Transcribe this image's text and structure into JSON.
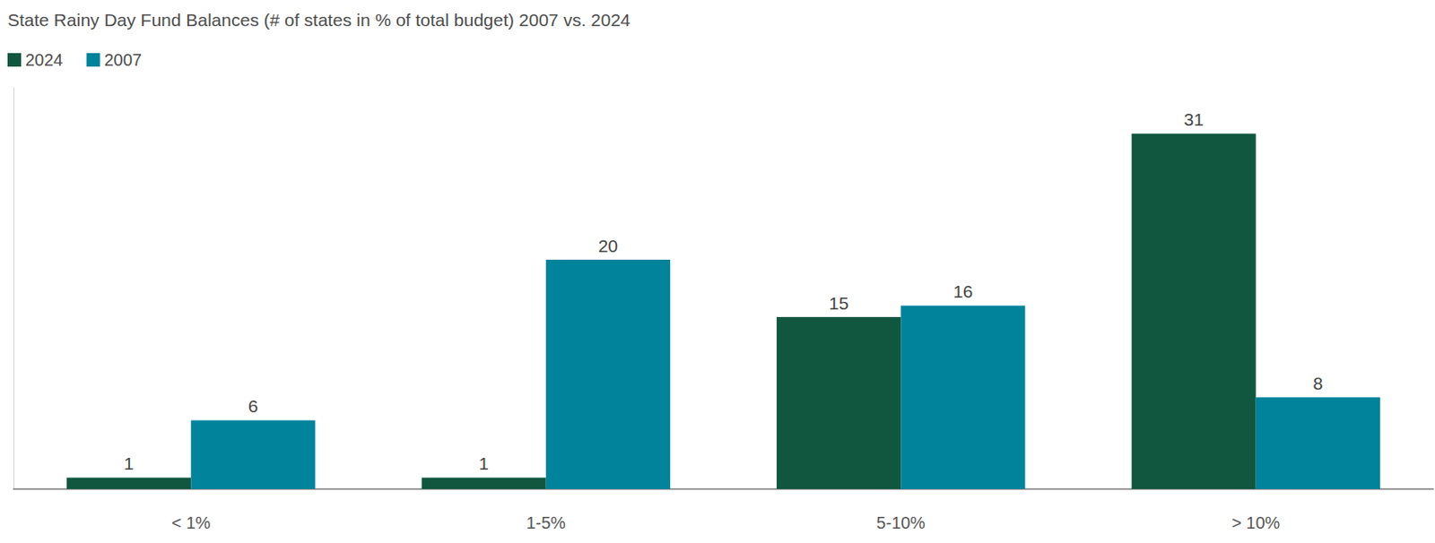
{
  "chart_data": {
    "type": "bar",
    "title": "State Rainy Day Fund Balances (# of states in % of total budget) 2007 vs. 2024",
    "categories": [
      "< 1%",
      "1-5%",
      "5-10%",
      "> 10%"
    ],
    "series": [
      {
        "name": "2024",
        "color": "#11573f",
        "values": [
          1,
          1,
          15,
          31
        ]
      },
      {
        "name": "2007",
        "color": "#00839b",
        "values": [
          6,
          20,
          16,
          8
        ]
      }
    ],
    "ylim": [
      0,
      35
    ],
    "grid": false,
    "legend": "top-left",
    "data_labels": true,
    "tick_labels": "x"
  }
}
